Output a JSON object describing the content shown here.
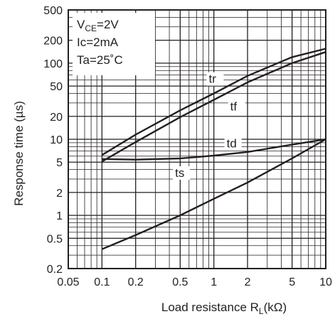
{
  "chart_data": {
    "type": "line",
    "xscale": "log",
    "yscale": "log",
    "xlim": [
      0.05,
      10
    ],
    "ylim": [
      0.2,
      500
    ],
    "grid": true,
    "xlabel": {
      "main": "Load resistance R",
      "sub": "L",
      "unit": "(kΩ)"
    },
    "ylabel": "Response time (µs)",
    "xticks": [
      {
        "value": 0.05,
        "label": "0.05"
      },
      {
        "value": 0.1,
        "label": "0.1"
      },
      {
        "value": 0.2,
        "label": "0.2"
      },
      {
        "value": 0.5,
        "label": "0.5"
      },
      {
        "value": 1,
        "label": "1"
      },
      {
        "value": 2,
        "label": "2"
      },
      {
        "value": 5,
        "label": "5"
      },
      {
        "value": 10,
        "label": "10"
      }
    ],
    "yticks": [
      {
        "value": 0.2,
        "label": "0.2"
      },
      {
        "value": 0.5,
        "label": "0.5"
      },
      {
        "value": 1,
        "label": "1"
      },
      {
        "value": 2,
        "label": "2"
      },
      {
        "value": 5,
        "label": "5"
      },
      {
        "value": 10,
        "label": "10"
      },
      {
        "value": 20,
        "label": "20"
      },
      {
        "value": 50,
        "label": "50"
      },
      {
        "value": 100,
        "label": "100"
      },
      {
        "value": 200,
        "label": "200"
      },
      {
        "value": 500,
        "label": "500"
      }
    ],
    "conditions": {
      "vce": {
        "main": "V",
        "sub": "CE",
        "rest": "=2V"
      },
      "ic": "Ic=2mA",
      "ta": "Ta=25˚C"
    },
    "series": [
      {
        "name": "tr",
        "x": [
          0.1,
          0.2,
          0.5,
          1,
          2,
          5,
          10
        ],
        "y": [
          6.2,
          11.5,
          24,
          40,
          68,
          120,
          155
        ]
      },
      {
        "name": "tf",
        "x": [
          0.1,
          0.2,
          0.5,
          1,
          2,
          5,
          10
        ],
        "y": [
          5.1,
          9.2,
          19.5,
          33,
          56,
          100,
          140
        ]
      },
      {
        "name": "td",
        "x": [
          0.1,
          0.2,
          0.5,
          1,
          2,
          5,
          10
        ],
        "y": [
          5.5,
          5.4,
          5.6,
          6.1,
          6.8,
          8.5,
          10
        ]
      },
      {
        "name": "ts",
        "x": [
          0.1,
          0.2,
          0.5,
          1,
          2,
          5,
          10
        ],
        "y": [
          0.36,
          0.55,
          1.0,
          1.65,
          2.7,
          5.6,
          10
        ]
      }
    ]
  }
}
